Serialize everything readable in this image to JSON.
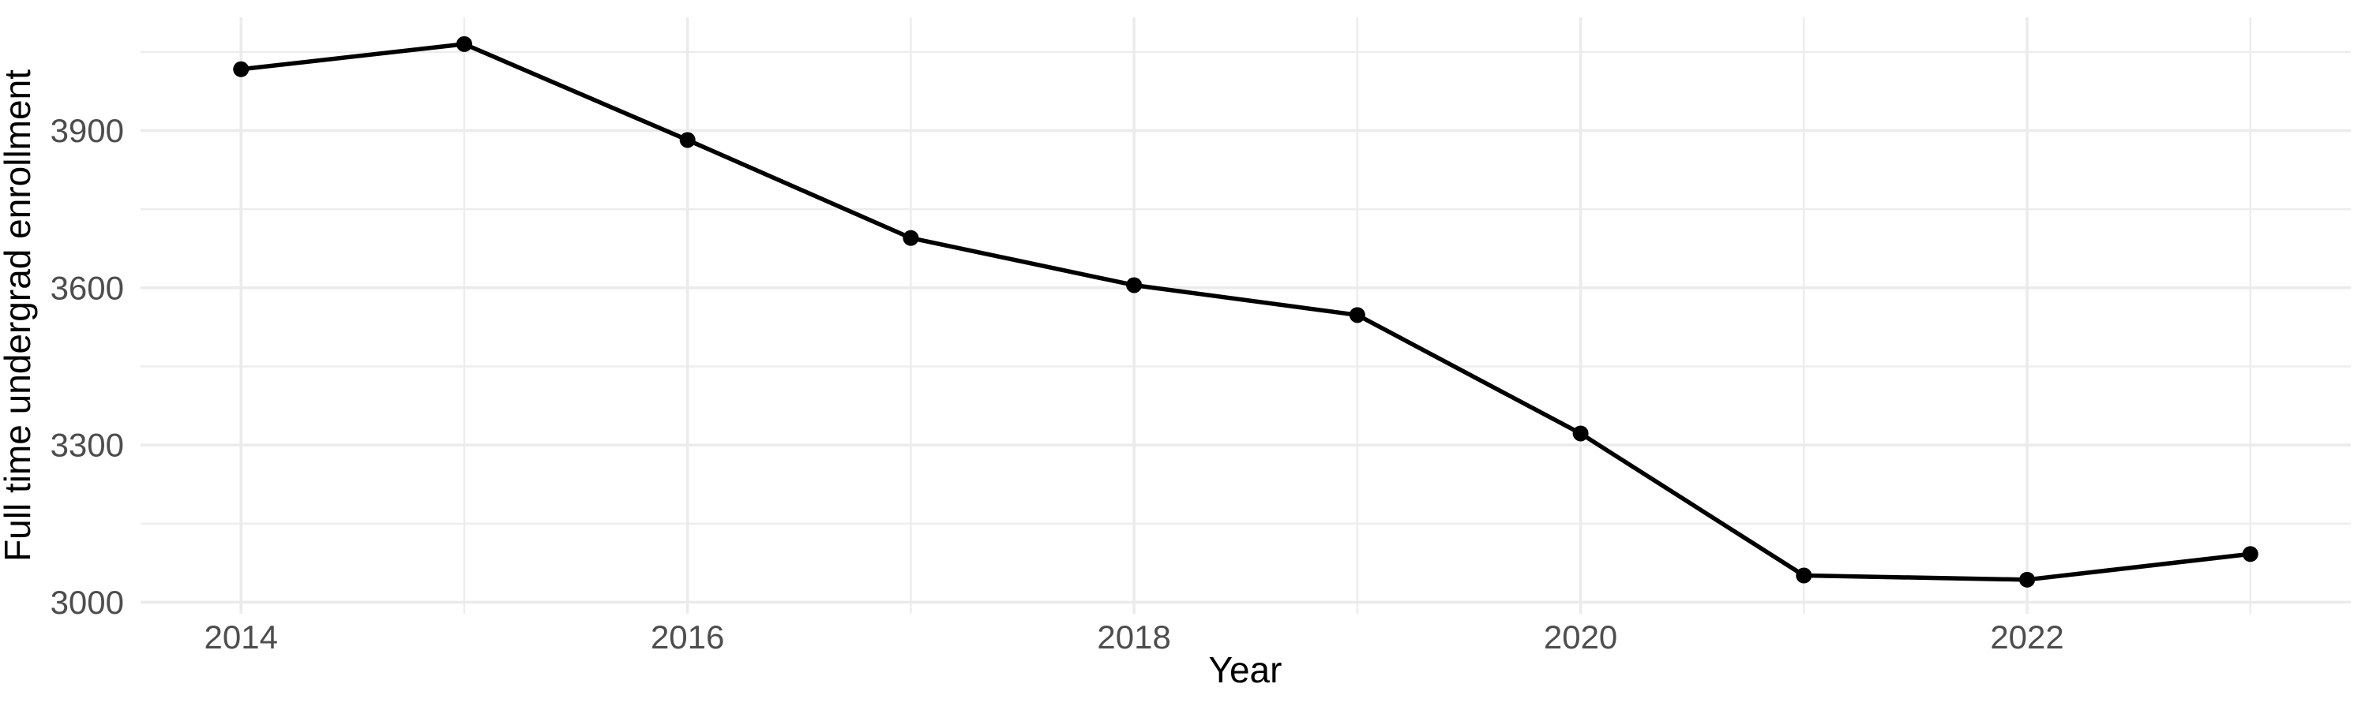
{
  "chart_data": {
    "type": "line",
    "title": "",
    "xlabel": "Year",
    "ylabel": "Full time undergrad enrollment",
    "series": [
      {
        "name": "Full time undergrad enrollment",
        "x": [
          2014,
          2015,
          2016,
          2017,
          2018,
          2019,
          2020,
          2021,
          2022,
          2023
        ],
        "y": [
          4017,
          4065,
          3882,
          3695,
          3605,
          3548,
          3322,
          3051,
          3043,
          3092
        ]
      }
    ],
    "x_ticks": [
      2014,
      2016,
      2018,
      2020,
      2022
    ],
    "x_minor_breaks": [
      2015,
      2017,
      2019,
      2021,
      2023
    ],
    "y_ticks": [
      3000,
      3300,
      3600,
      3900
    ],
    "y_minor_breaks": [
      3150,
      3450,
      3750,
      4050
    ],
    "xlim": [
      2013.55,
      2023.45
    ],
    "ylim": [
      2978,
      4116
    ],
    "grid": true,
    "legend_position": "none",
    "colors": {
      "line": "#000000",
      "point": "#000000",
      "grid_major": "#EBEBEB",
      "grid_minor": "#EDEDED",
      "tick_label": "#4D4D4D",
      "axis_title": "#000000",
      "background": "#FFFFFF"
    }
  }
}
